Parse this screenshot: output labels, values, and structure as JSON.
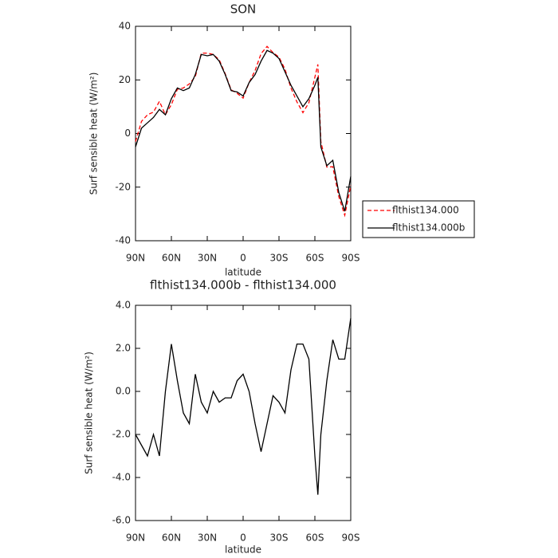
{
  "chart_data": [
    {
      "type": "line",
      "title": "SON",
      "xlabel": "latitude",
      "ylabel": "Surf sensible heat (W/m²)",
      "x": [
        90,
        85,
        80,
        75,
        70,
        65,
        60,
        55,
        50,
        45,
        40,
        35,
        30,
        25,
        20,
        15,
        10,
        5,
        0,
        -5,
        -10,
        -15,
        -20,
        -25,
        -30,
        -35,
        -40,
        -45,
        -50,
        -55,
        -60,
        -62.5,
        -65,
        -70,
        -75,
        -80,
        -85,
        -90
      ],
      "xlim": [
        90,
        -90
      ],
      "xticks": [
        {
          "value": 90,
          "label": "90N"
        },
        {
          "value": 60,
          "label": "60N"
        },
        {
          "value": 30,
          "label": "30N"
        },
        0,
        {
          "value": -30,
          "label": "30S"
        },
        {
          "value": -60,
          "label": "60S"
        },
        {
          "value": -90,
          "label": "90S"
        }
      ],
      "ylim": [
        -40,
        40
      ],
      "yticks": [
        -40,
        -20,
        0,
        20,
        40
      ],
      "series": [
        {
          "name": "flthist134.000",
          "color": "#ff0000",
          "line_style": "dashed",
          "values": [
            -3,
            4.5,
            7,
            8,
            12,
            7,
            10.8,
            16.5,
            17,
            18.5,
            21.2,
            30,
            30,
            29.5,
            27.5,
            22.3,
            16.3,
            15,
            13.2,
            19,
            23.5,
            29.8,
            32.5,
            30.2,
            28.5,
            24,
            17,
            11.8,
            7.8,
            11.5,
            21,
            25.8,
            -3,
            -12.5,
            -12.4,
            -23.5,
            -30.5,
            -19.4
          ]
        },
        {
          "name": "flthist134.000b",
          "color": "#000000",
          "line_style": "solid",
          "values": [
            -5,
            2,
            4,
            6,
            9,
            7,
            13,
            17,
            16,
            17,
            22,
            29.5,
            29,
            29.5,
            27,
            22,
            16,
            15.5,
            14,
            19,
            22,
            27,
            31,
            30,
            28,
            23,
            18,
            14,
            10,
            13,
            18,
            21,
            -5,
            -12,
            -10,
            -22,
            -29,
            -16
          ]
        }
      ]
    },
    {
      "type": "line",
      "title": "flthist134.000b - flthist134.000",
      "xlabel": "latitude",
      "ylabel": "Surf sensible heat (W/m²)",
      "x": [
        90,
        85,
        80,
        75,
        70,
        65,
        60,
        55,
        50,
        45,
        40,
        35,
        30,
        25,
        20,
        15,
        10,
        5,
        0,
        -5,
        -10,
        -15,
        -20,
        -25,
        -30,
        -35,
        -40,
        -45,
        -50,
        -55,
        -60,
        -62.5,
        -65,
        -70,
        -75,
        -80,
        -85,
        -90
      ],
      "xlim": [
        90,
        -90
      ],
      "xticks": [
        {
          "value": 90,
          "label": "90N"
        },
        {
          "value": 60,
          "label": "60N"
        },
        {
          "value": 30,
          "label": "30N"
        },
        0,
        {
          "value": -30,
          "label": "30S"
        },
        {
          "value": -60,
          "label": "60S"
        },
        {
          "value": -90,
          "label": "90S"
        }
      ],
      "ylim": [
        -6,
        4
      ],
      "yticks": [
        {
          "value": -6,
          "label": "-6.0"
        },
        {
          "value": -4,
          "label": "-4.0"
        },
        {
          "value": -2,
          "label": "-2.0"
        },
        {
          "value": 0,
          "label": "0.0"
        },
        {
          "value": 2,
          "label": "2.0"
        },
        {
          "value": 4,
          "label": "4.0"
        }
      ],
      "series": [
        {
          "color": "#000000",
          "line_style": "solid",
          "values": [
            -2,
            -2.5,
            -3,
            -2,
            -3,
            0,
            2.2,
            0.5,
            -1,
            -1.5,
            0.8,
            -0.5,
            -1,
            0,
            -0.5,
            -0.3,
            -0.3,
            0.5,
            0.8,
            0,
            -1.5,
            -2.8,
            -1.5,
            -0.2,
            -0.5,
            -1,
            1,
            2.2,
            2.2,
            1.5,
            -3,
            -4.8,
            -2,
            0.5,
            2.4,
            1.5,
            1.5,
            3.4
          ]
        }
      ]
    }
  ]
}
